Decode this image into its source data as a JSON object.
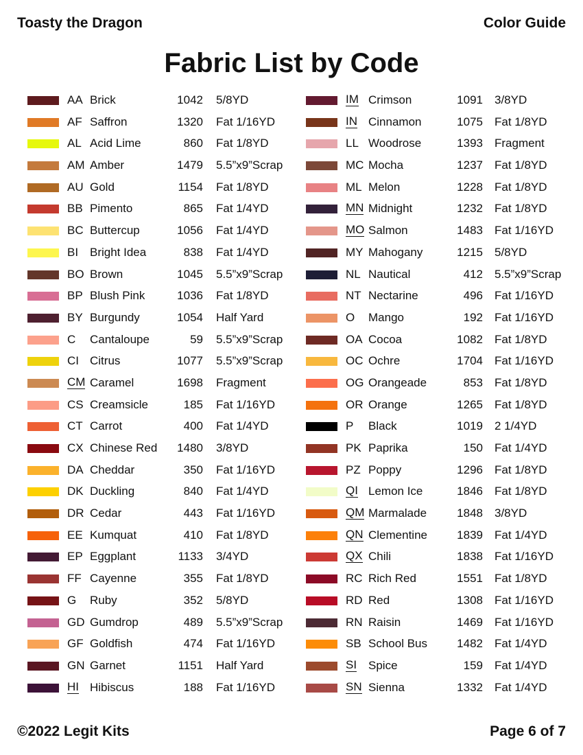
{
  "header": {
    "left": "Toasty the Dragon",
    "right": "Color Guide"
  },
  "title": "Fabric List by Code",
  "footer": {
    "left": "©2022 Legit Kits",
    "right": "Page 6 of 7"
  },
  "columns": [
    [
      {
        "color": "#5e1b1e",
        "code": "AA",
        "name": "Brick",
        "num": "1042",
        "size": "5/8YD"
      },
      {
        "color": "#e07a26",
        "code": "AF",
        "name": "Saffron",
        "num": "1320",
        "size": "Fat 1/16YD"
      },
      {
        "color": "#e6f80c",
        "code": "AL",
        "name": "Acid Lime",
        "num": "860",
        "size": "Fat 1/8YD"
      },
      {
        "color": "#c47a3c",
        "code": "AM",
        "name": "Amber",
        "num": "1479",
        "size": "5.5”x9”Scrap"
      },
      {
        "color": "#b06a24",
        "code": "AU",
        "name": "Gold",
        "num": "1154",
        "size": "Fat 1/8YD"
      },
      {
        "color": "#c43a2e",
        "code": "BB",
        "name": "Pimento",
        "num": "865",
        "size": "Fat 1/4YD"
      },
      {
        "color": "#fde272",
        "code": "BC",
        "name": "Buttercup",
        "num": "1056",
        "size": "Fat 1/4YD"
      },
      {
        "color": "#fdf64e",
        "code": "BI",
        "name": "Bright Idea",
        "num": "838",
        "size": "Fat 1/4YD"
      },
      {
        "color": "#63362a",
        "code": "BO",
        "name": "Brown",
        "num": "1045",
        "size": "5.5”x9”Scrap"
      },
      {
        "color": "#d86e94",
        "code": "BP",
        "name": "Blush Pink",
        "num": "1036",
        "size": "Fat 1/8YD"
      },
      {
        "color": "#4e2030",
        "code": "BY",
        "name": "Burgundy",
        "num": "1054",
        "size": "Half Yard"
      },
      {
        "color": "#fca18c",
        "code": "C",
        "name": "Cantaloupe",
        "num": "59",
        "size": "5.5”x9”Scrap"
      },
      {
        "color": "#eed20c",
        "code": "CI",
        "name": "Citrus",
        "num": "1077",
        "size": "5.5”x9”Scrap"
      },
      {
        "color": "#cc8a52",
        "code": "CM",
        "name": "Caramel",
        "num": "1698",
        "size": "Fragment",
        "underline": true
      },
      {
        "color": "#fc9c86",
        "code": "CS",
        "name": "Creamsicle",
        "num": "185",
        "size": "Fat 1/16YD"
      },
      {
        "color": "#ee6034",
        "code": "CT",
        "name": "Carrot",
        "num": "400",
        "size": "Fat 1/4YD"
      },
      {
        "color": "#8a0a10",
        "code": "CX",
        "name": "Chinese Red",
        "num": "1480",
        "size": "3/8YD"
      },
      {
        "color": "#fbb22c",
        "code": "DA",
        "name": "Cheddar",
        "num": "350",
        "size": "Fat 1/16YD"
      },
      {
        "color": "#fdd000",
        "code": "DK",
        "name": "Duckling",
        "num": "840",
        "size": "Fat 1/4YD"
      },
      {
        "color": "#b25e0c",
        "code": "DR",
        "name": "Cedar",
        "num": "443",
        "size": "Fat 1/16YD"
      },
      {
        "color": "#f6620a",
        "code": "EE",
        "name": "Kumquat",
        "num": "410",
        "size": "Fat 1/8YD"
      },
      {
        "color": "#431a34",
        "code": "EP",
        "name": "Eggplant",
        "num": "1133",
        "size": "3/4YD"
      },
      {
        "color": "#9a3432",
        "code": "FF",
        "name": "Cayenne",
        "num": "355",
        "size": "Fat 1/8YD"
      },
      {
        "color": "#761316",
        "code": "G",
        "name": "Ruby",
        "num": "352",
        "size": "5/8YD"
      },
      {
        "color": "#c46292",
        "code": "GD",
        "name": "Gumdrop",
        "num": "489",
        "size": "5.5”x9”Scrap"
      },
      {
        "color": "#f8a356",
        "code": "GF",
        "name": "Goldfish",
        "num": "474",
        "size": "Fat 1/16YD"
      },
      {
        "color": "#5a1622",
        "code": "GN",
        "name": "Garnet",
        "num": "1151",
        "size": "Half Yard"
      },
      {
        "color": "#3c1238",
        "code": "HI",
        "name": "Hibiscus",
        "num": "188",
        "size": "Fat 1/16YD",
        "underline": true
      }
    ],
    [
      {
        "color": "#631a30",
        "code": "IM",
        "name": "Crimson",
        "num": "1091",
        "size": "3/8YD",
        "underline": true
      },
      {
        "color": "#78351a",
        "code": "IN",
        "name": "Cinnamon",
        "num": "1075",
        "size": "Fat 1/8YD",
        "underline": true
      },
      {
        "color": "#e6a6ac",
        "code": "LL",
        "name": "Woodrose",
        "num": "1393",
        "size": "Fragment"
      },
      {
        "color": "#7c4838",
        "code": "MC",
        "name": "Mocha",
        "num": "1237",
        "size": "Fat 1/8YD"
      },
      {
        "color": "#e88284",
        "code": "ML",
        "name": "Melon",
        "num": "1228",
        "size": "Fat 1/8YD"
      },
      {
        "color": "#33213a",
        "code": "MN",
        "name": "Midnight",
        "num": "1232",
        "size": "Fat 1/8YD",
        "underline": true
      },
      {
        "color": "#e4968a",
        "code": "MO",
        "name": "Salmon",
        "num": "1483",
        "size": "Fat 1/16YD",
        "underline": true
      },
      {
        "color": "#512424",
        "code": "MY",
        "name": "Mahogany",
        "num": "1215",
        "size": "5/8YD"
      },
      {
        "color": "#1e1e36",
        "code": "NL",
        "name": "Nautical",
        "num": "412",
        "size": "5.5”x9”Scrap"
      },
      {
        "color": "#e86c60",
        "code": "NT",
        "name": "Nectarine",
        "num": "496",
        "size": "Fat 1/16YD"
      },
      {
        "color": "#ec9466",
        "code": "O",
        "name": "Mango",
        "num": "192",
        "size": "Fat 1/16YD"
      },
      {
        "color": "#6e2a24",
        "code": "OA",
        "name": "Cocoa",
        "num": "1082",
        "size": "Fat 1/8YD"
      },
      {
        "color": "#f8b83e",
        "code": "OC",
        "name": "Ochre",
        "num": "1704",
        "size": "Fat 1/16YD"
      },
      {
        "color": "#fc6e4c",
        "code": "OG",
        "name": "Orangeade",
        "num": "853",
        "size": "Fat 1/8YD"
      },
      {
        "color": "#f4720e",
        "code": "OR",
        "name": "Orange",
        "num": "1265",
        "size": "Fat 1/8YD"
      },
      {
        "color": "#000000",
        "code": "P",
        "name": "Black",
        "num": "1019",
        "size": "2  1/4YD"
      },
      {
        "color": "#923424",
        "code": "PK",
        "name": "Paprika",
        "num": "150",
        "size": "Fat 1/4YD"
      },
      {
        "color": "#b8162e",
        "code": "PZ",
        "name": "Poppy",
        "num": "1296",
        "size": "Fat 1/8YD"
      },
      {
        "color": "#f2fcc8",
        "code": "QI",
        "name": "Lemon Ice",
        "num": "1846",
        "size": "Fat 1/8YD",
        "underline": true
      },
      {
        "color": "#d85a10",
        "code": "QM",
        "name": "Marmalade",
        "num": "1848",
        "size": "3/8YD",
        "underline": true
      },
      {
        "color": "#fc800a",
        "code": "QN",
        "name": "Clementine",
        "num": "1839",
        "size": "Fat 1/4YD",
        "underline": true
      },
      {
        "color": "#cc3a34",
        "code": "QX",
        "name": "Chili",
        "num": "1838",
        "size": "Fat 1/16YD",
        "underline": true
      },
      {
        "color": "#8c0a26",
        "code": "RC",
        "name": "Rich Red",
        "num": "1551",
        "size": "Fat 1/8YD"
      },
      {
        "color": "#b80c26",
        "code": "RD",
        "name": "Red",
        "num": "1308",
        "size": "Fat 1/16YD"
      },
      {
        "color": "#4c2a34",
        "code": "RN",
        "name": "Raisin",
        "num": "1469",
        "size": "Fat 1/16YD"
      },
      {
        "color": "#fc8c08",
        "code": "SB",
        "name": "School Bus",
        "num": "1482",
        "size": "Fat 1/4YD"
      },
      {
        "color": "#9c4a2c",
        "code": "SI",
        "name": "Spice",
        "num": "159",
        "size": "Fat 1/4YD",
        "underline": true
      },
      {
        "color": "#a84a46",
        "code": "SN",
        "name": "Sienna",
        "num": "1332",
        "size": "Fat 1/4YD",
        "underline": true
      }
    ]
  ]
}
